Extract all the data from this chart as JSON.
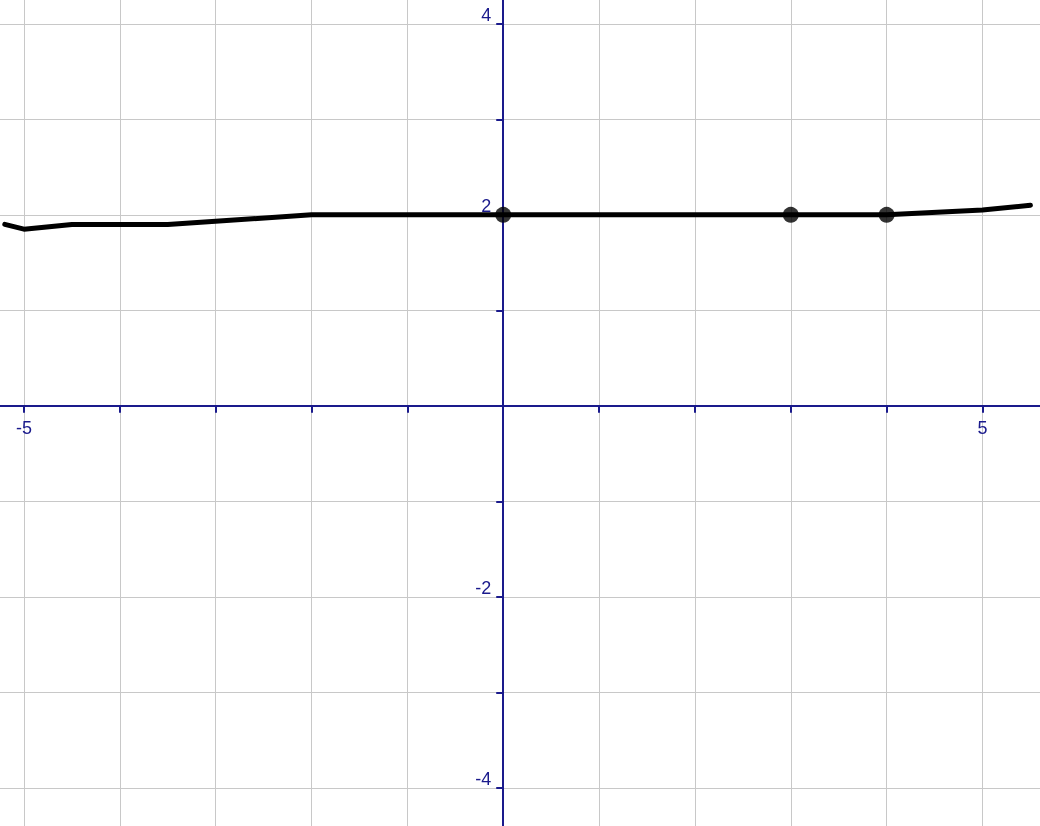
{
  "chart_data": {
    "type": "line",
    "xlim": [
      -5.25,
      5.6
    ],
    "ylim": [
      -4.4,
      4.25
    ],
    "xticks": [
      -5,
      {
        "value": -4,
        "label": null
      },
      {
        "value": -3,
        "label": null
      },
      {
        "value": -2,
        "label": null
      },
      {
        "value": -1,
        "label": null
      },
      {
        "value": 0,
        "label": null
      },
      {
        "value": 1,
        "label": null
      },
      {
        "value": 2,
        "label": null
      },
      {
        "value": 3,
        "label": null
      },
      {
        "value": 4,
        "label": null
      },
      5
    ],
    "yticks": [
      -4,
      {
        "value": -3,
        "label": null
      },
      -2,
      {
        "value": -1,
        "label": null
      },
      {
        "value": 0,
        "label": null
      },
      {
        "value": 1,
        "label": null
      },
      2,
      {
        "value": 3,
        "label": null
      },
      4
    ],
    "grid": true,
    "series": [
      {
        "color": "#000000",
        "marker": "none",
        "line_style": "solid",
        "x": [
          -5.2,
          -5,
          -4.5,
          -3.5,
          -2,
          -1,
          0,
          1.5,
          3,
          4,
          5,
          5.5
        ],
        "values": [
          1.9,
          1.85,
          1.9,
          1.9,
          2,
          2,
          2,
          2,
          2,
          2,
          2.05,
          2.1
        ]
      },
      {
        "type": "scatter",
        "color": "#000000",
        "marker": "circle",
        "x": [
          0,
          3,
          4
        ],
        "values": [
          2,
          2,
          2
        ]
      }
    ]
  }
}
